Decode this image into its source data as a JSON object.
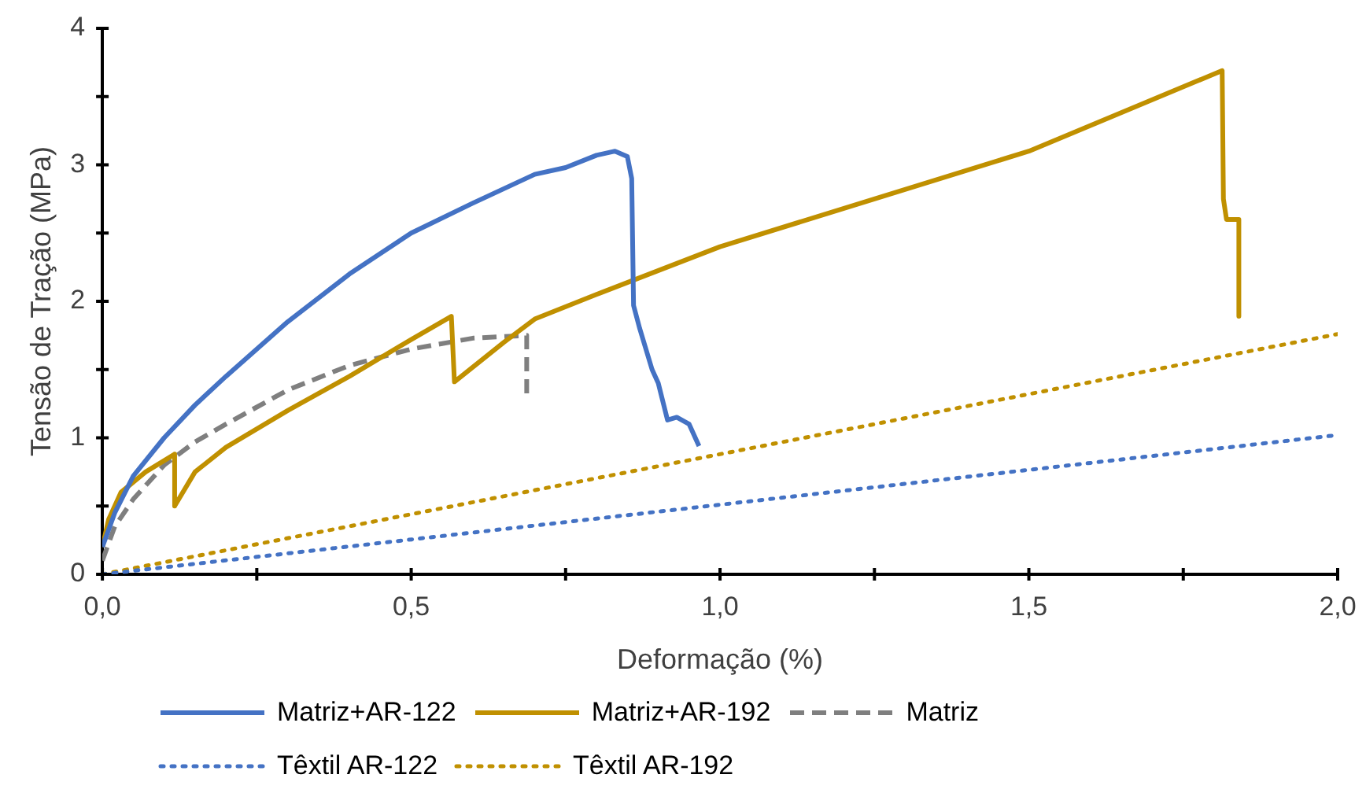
{
  "chart_data": {
    "type": "line",
    "xlabel": "Deformação (%)",
    "ylabel": "Tensão de Tração (MPa)",
    "xlim": [
      0,
      2
    ],
    "ylim": [
      0,
      4
    ],
    "xticks": [
      {
        "value": 0,
        "label": "0,0"
      },
      {
        "value": 0.25,
        "label": null
      },
      {
        "value": 0.5,
        "label": "0,5"
      },
      {
        "value": 0.75,
        "label": null
      },
      {
        "value": 1,
        "label": "1,0"
      },
      {
        "value": 1.25,
        "label": null
      },
      {
        "value": 1.5,
        "label": "1,5"
      },
      {
        "value": 1.75,
        "label": null
      },
      {
        "value": 2,
        "label": "2,0"
      }
    ],
    "yticks": [
      0,
      {
        "value": 0.5,
        "label": null
      },
      1,
      {
        "value": 1.5,
        "label": null
      },
      2,
      {
        "value": 2.5,
        "label": null
      },
      3,
      {
        "value": 3.5,
        "label": null
      },
      4
    ],
    "grid": false,
    "legend": "bottom",
    "marker": "none",
    "series": [
      {
        "name": "Matriz+AR-122",
        "color": "#4472c4",
        "line_style": "solid",
        "x": [
          0,
          0.02,
          0.05,
          0.1,
          0.15,
          0.2,
          0.3,
          0.4,
          0.5,
          0.6,
          0.7,
          0.75,
          0.8,
          0.83,
          0.85,
          0.857,
          0.86,
          0.87,
          0.89,
          0.9,
          0.915,
          0.93,
          0.95,
          0.966
        ],
        "values": [
          0.2,
          0.45,
          0.72,
          1.0,
          1.24,
          1.45,
          1.85,
          2.2,
          2.5,
          2.72,
          2.93,
          2.98,
          3.07,
          3.1,
          3.06,
          2.9,
          1.97,
          1.8,
          1.5,
          1.4,
          1.13,
          1.15,
          1.1,
          0.94
        ]
      },
      {
        "name": "Matriz+AR-192",
        "color": "#c09000",
        "line_style": "solid",
        "x": [
          0,
          0.01,
          0.03,
          0.07,
          0.117,
          0.117,
          0.15,
          0.2,
          0.3,
          0.4,
          0.5,
          0.565,
          0.57,
          0.65,
          0.7,
          0.8,
          1.0,
          1.5,
          1.813,
          1.815,
          1.82,
          1.84,
          1.84
        ],
        "values": [
          0.2,
          0.4,
          0.6,
          0.75,
          0.88,
          0.5,
          0.75,
          0.93,
          1.2,
          1.45,
          1.72,
          1.89,
          1.41,
          1.7,
          1.87,
          2.05,
          2.4,
          3.1,
          3.69,
          2.75,
          2.6,
          2.6,
          1.89
        ]
      },
      {
        "name": "Matriz",
        "color": "#7f7f7f",
        "line_style": "dashed",
        "x": [
          0,
          0.02,
          0.05,
          0.1,
          0.15,
          0.2,
          0.3,
          0.4,
          0.5,
          0.6,
          0.687,
          0.687
        ],
        "values": [
          0.1,
          0.35,
          0.55,
          0.8,
          0.97,
          1.1,
          1.35,
          1.53,
          1.65,
          1.73,
          1.75,
          1.3
        ]
      },
      {
        "name": "Têxtil AR-122",
        "color": "#4472c4",
        "line_style": "dotted",
        "x": [
          0,
          2
        ],
        "values": [
          0,
          1.02
        ]
      },
      {
        "name": "Têxtil AR-192",
        "color": "#c09000",
        "line_style": "dotted",
        "x": [
          0,
          2
        ],
        "values": [
          0,
          1.76
        ]
      }
    ]
  }
}
